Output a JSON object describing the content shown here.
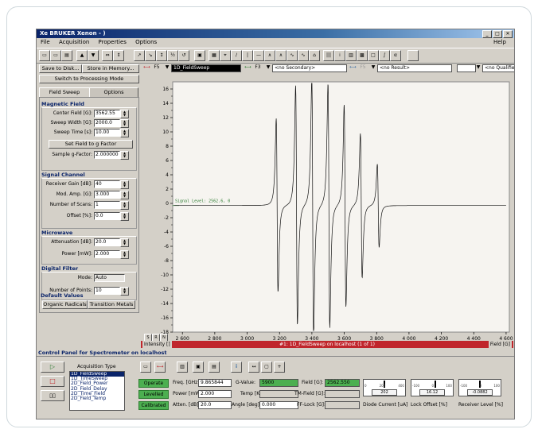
{
  "window": {
    "app_icon": "Xe",
    "title": "BRUKER Xenon - )"
  },
  "menu": {
    "items": [
      "File",
      "Acquisition",
      "Properties",
      "Options"
    ],
    "help": "Help"
  },
  "left": {
    "save_button": "Save to Disk...",
    "store_button": "Store in Memory...",
    "switch_button": "Switch to Processing Mode",
    "tabs": [
      "Field Sweep",
      "Options"
    ],
    "magnetic_field": {
      "title": "Magnetic Field",
      "center_field_label": "Center Field [G]:",
      "center_field": "3562.55",
      "sweep_width_label": "Sweep Width [G]:",
      "sweep_width": "2000.0",
      "sweep_time_label": "Sweep Time [s]:",
      "sweep_time": "10.00",
      "set_gfactor_button": "Set Field to g Factor",
      "sample_g_label": "Sample g-Factor:",
      "sample_g": "2.000000"
    },
    "signal_channel": {
      "title": "Signal Channel",
      "receiver_gain_label": "Receiver Gain [dB]:",
      "receiver_gain": "40",
      "mod_amp_label": "Mod. Amp. [G]:",
      "mod_amp": "3.000",
      "num_scans_label": "Number of Scans:",
      "num_scans": "1",
      "offset_label": "Offset [%]:",
      "offset": "0.0"
    },
    "microwave": {
      "title": "Microwave",
      "attenuation_label": "Attenuation [dB]:",
      "attenuation": "20.0",
      "power_label": "Power [mW]:",
      "power": "2.000"
    },
    "digital_filter": {
      "title": "Digital Filter",
      "mode_label": "Mode:",
      "mode": "Auto",
      "points_label": "Number of Points:",
      "points": "10"
    },
    "defaults": {
      "title": "Default Values",
      "organic": "Organic Radicals",
      "transition": "Transition Metals"
    }
  },
  "channels": {
    "primary": "1D_FieldSweep",
    "primary_prefix": "F5",
    "secondary": "<no Secondary>",
    "secondary_prefix": "F3",
    "result": "<no Result>",
    "result_prefix": "F5",
    "qualifier": "<no Qualifier>"
  },
  "plot": {
    "status_text": "#1: 1D_FieldSweep on localhost (1 of 1)",
    "left_label": "Intensity []",
    "right_label": "Field [G]",
    "signal_label": "Signal Level: 2562.6, 0"
  },
  "control_panel": {
    "title": "Control Panel for Spectrometer on  localhost",
    "acq_type_label": "Acquisition Type",
    "acq_types": [
      "1D_FieldSweep",
      "1D_TimeSweep",
      "2D_Field_Power",
      "2D_Field_Delay",
      "2D_Time_Field",
      "2D_Field_Temp"
    ],
    "operate": "Operate",
    "levelled": "Levelled",
    "calibrated": "Calibrated",
    "freq_label": "Freq. [GHz]:",
    "freq": "9.865844",
    "power_label": "Power [mW]:",
    "power": "2.000",
    "atten_label": "Atten. [dB]:",
    "atten": "20.0",
    "gvalue_label": "G-Value:",
    "gvalue": "5900",
    "temp_label": "Temp [K]:",
    "temp": "",
    "angle_label": "Angle [deg]:",
    "angle": "0.000",
    "field_label": "Field [G]:",
    "field": "2562.550",
    "tmfield_label": "TM-Field [G]:",
    "tmfield": "",
    "fflock_label": "FF-Lock [G]:",
    "fflock": "",
    "diode_label": "Diode Current [uA]",
    "diode_value": "202",
    "lock_label": "Lock Offset [%]",
    "lock_value": "16.12",
    "receiver_label": "Receiver Level [%]",
    "receiver_value": "-0.0882"
  },
  "chart_data": {
    "type": "line",
    "xlabel": "",
    "ylabel": "",
    "xlim": [
      2540,
      4620
    ],
    "ylim": [
      -18,
      17
    ],
    "xticks": [
      "2 600",
      "2 800",
      "3 000",
      "3 200",
      "3 400",
      "3 600",
      "3 800",
      "4 000",
      "4 200",
      "4 400",
      "4 600"
    ],
    "yticks": [
      "16",
      "14",
      "12",
      "10",
      "8",
      "6",
      "4",
      "2",
      "0",
      "-2",
      "-4",
      "-6",
      "-8",
      "-10",
      "-12",
      "-14",
      "-16",
      "-18"
    ],
    "baseline": -0.3,
    "lines": [
      {
        "center": 3185,
        "amp": 10.8
      },
      {
        "center": 3305,
        "amp": 14.9
      },
      {
        "center": 3405,
        "amp": 16.5
      },
      {
        "center": 3505,
        "amp": 15.2
      },
      {
        "center": 3605,
        "amp": 12.6
      },
      {
        "center": 3705,
        "amp": 9.0
      },
      {
        "center": 3810,
        "amp": 5.2
      }
    ]
  }
}
